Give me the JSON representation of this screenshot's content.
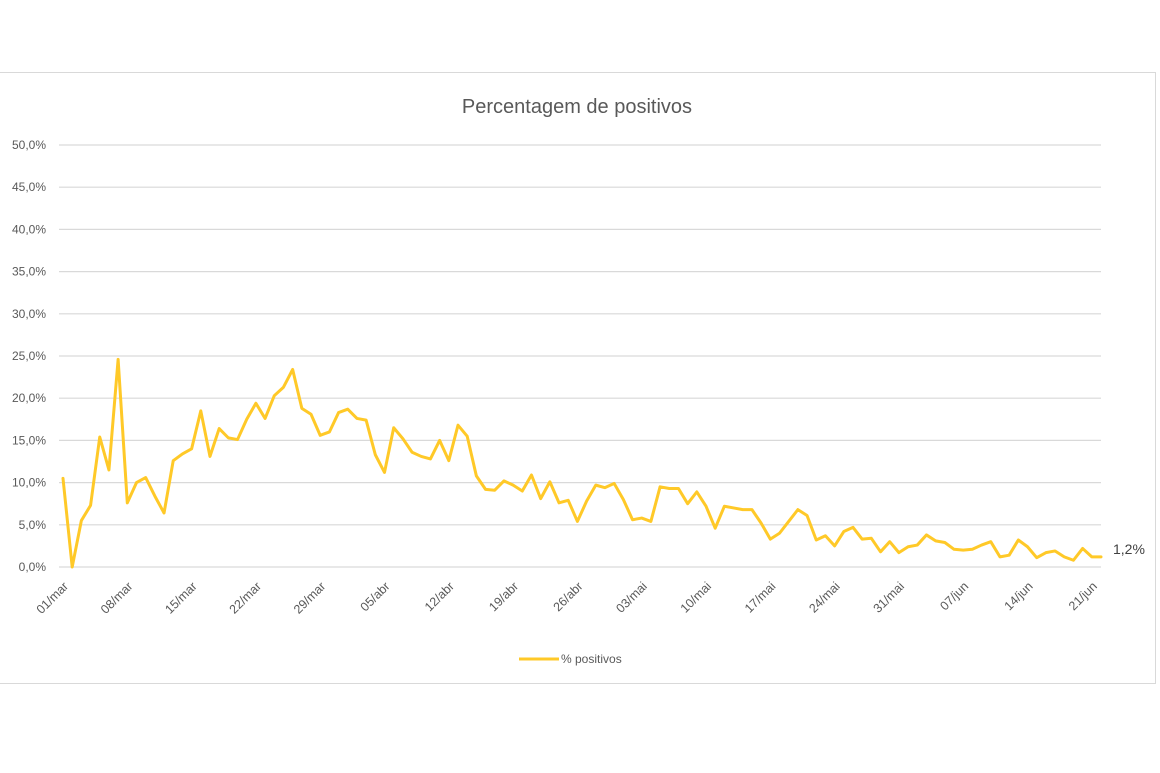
{
  "chart_data": {
    "type": "line",
    "title": "Percentagem de positivos",
    "xlabel": "",
    "ylabel": "",
    "ylim": [
      0,
      50
    ],
    "y_ticks": [
      0,
      5,
      10,
      15,
      20,
      25,
      30,
      35,
      40,
      45,
      50
    ],
    "y_tick_labels": [
      "0,0%",
      "5,0%",
      "10,0%",
      "15,0%",
      "20,0%",
      "25,0%",
      "30,0%",
      "35,0%",
      "40,0%",
      "45,0%",
      "50,0%"
    ],
    "x_tick_labels": [
      "01/mar",
      "08/mar",
      "15/mar",
      "22/mar",
      "29/mar",
      "05/abr",
      "12/abr",
      "19/abr",
      "26/abr",
      "03/mai",
      "10/mai",
      "17/mai",
      "24/mai",
      "31/mai",
      "07/jun",
      "14/jun",
      "21/jun"
    ],
    "x_tick_day_index": [
      0,
      7,
      14,
      21,
      28,
      35,
      42,
      49,
      56,
      63,
      70,
      77,
      84,
      91,
      98,
      105,
      112
    ],
    "legend_position": "bottom-center",
    "end_label": "1,2%",
    "grid": true,
    "series": [
      {
        "name": "% positivos",
        "color": "#FFC928",
        "values": [
          10.5,
          0.0,
          5.5,
          7.3,
          15.4,
          11.5,
          24.6,
          7.6,
          10.0,
          10.6,
          8.4,
          6.4,
          12.6,
          13.4,
          14.0,
          18.5,
          13.1,
          16.4,
          15.3,
          15.1,
          17.5,
          19.4,
          17.6,
          20.3,
          21.3,
          23.4,
          18.8,
          18.1,
          15.6,
          16.0,
          18.3,
          18.7,
          17.6,
          17.4,
          13.3,
          11.2,
          16.5,
          15.2,
          13.6,
          13.1,
          12.8,
          15.0,
          12.6,
          16.8,
          15.5,
          10.8,
          9.2,
          9.1,
          10.2,
          9.7,
          9.0,
          10.9,
          8.1,
          10.1,
          7.6,
          7.9,
          5.4,
          7.8,
          9.7,
          9.4,
          9.9,
          8.0,
          5.6,
          5.8,
          5.4,
          9.5,
          9.3,
          9.3,
          7.5,
          8.9,
          7.2,
          4.6,
          7.2,
          7.0,
          6.8,
          6.8,
          5.2,
          3.3,
          4.0,
          5.4,
          6.8,
          6.1,
          3.2,
          3.7,
          2.5,
          4.2,
          4.7,
          3.3,
          3.4,
          1.8,
          3.0,
          1.7,
          2.4,
          2.6,
          3.8,
          3.1,
          2.9,
          2.1,
          2.0,
          2.1,
          2.6,
          3.0,
          1.2,
          1.4,
          3.2,
          2.4,
          1.1,
          1.7,
          1.9,
          1.2,
          0.8,
          2.2,
          1.2,
          1.2
        ]
      }
    ]
  }
}
